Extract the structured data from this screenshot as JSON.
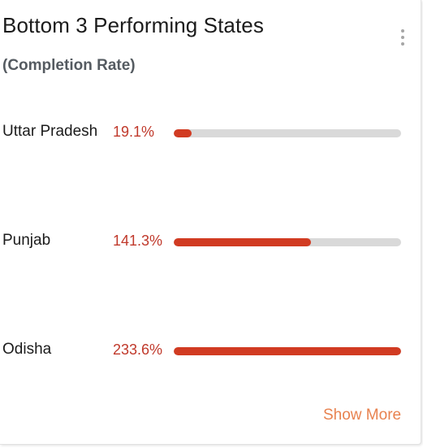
{
  "card": {
    "title": "Bottom 3 Performing States",
    "subtitle": "(Completion Rate)",
    "menu_icon": "more-vertical-icon",
    "show_more_label": "Show More"
  },
  "states": [
    {
      "name": "Uttar Pradesh",
      "value_label": "19.1%",
      "fill_fraction": 0.08
    },
    {
      "name": "Punjab",
      "value_label": "141.3%",
      "fill_fraction": 0.605
    },
    {
      "name": "Odisha",
      "value_label": "233.6%",
      "fill_fraction": 1.0
    }
  ],
  "colors": {
    "bar_fill": "#d13b22",
    "bar_track": "#d9d9d9",
    "value_text": "#c0392b",
    "show_more": "#e8824f",
    "subtitle": "#555b61"
  }
}
